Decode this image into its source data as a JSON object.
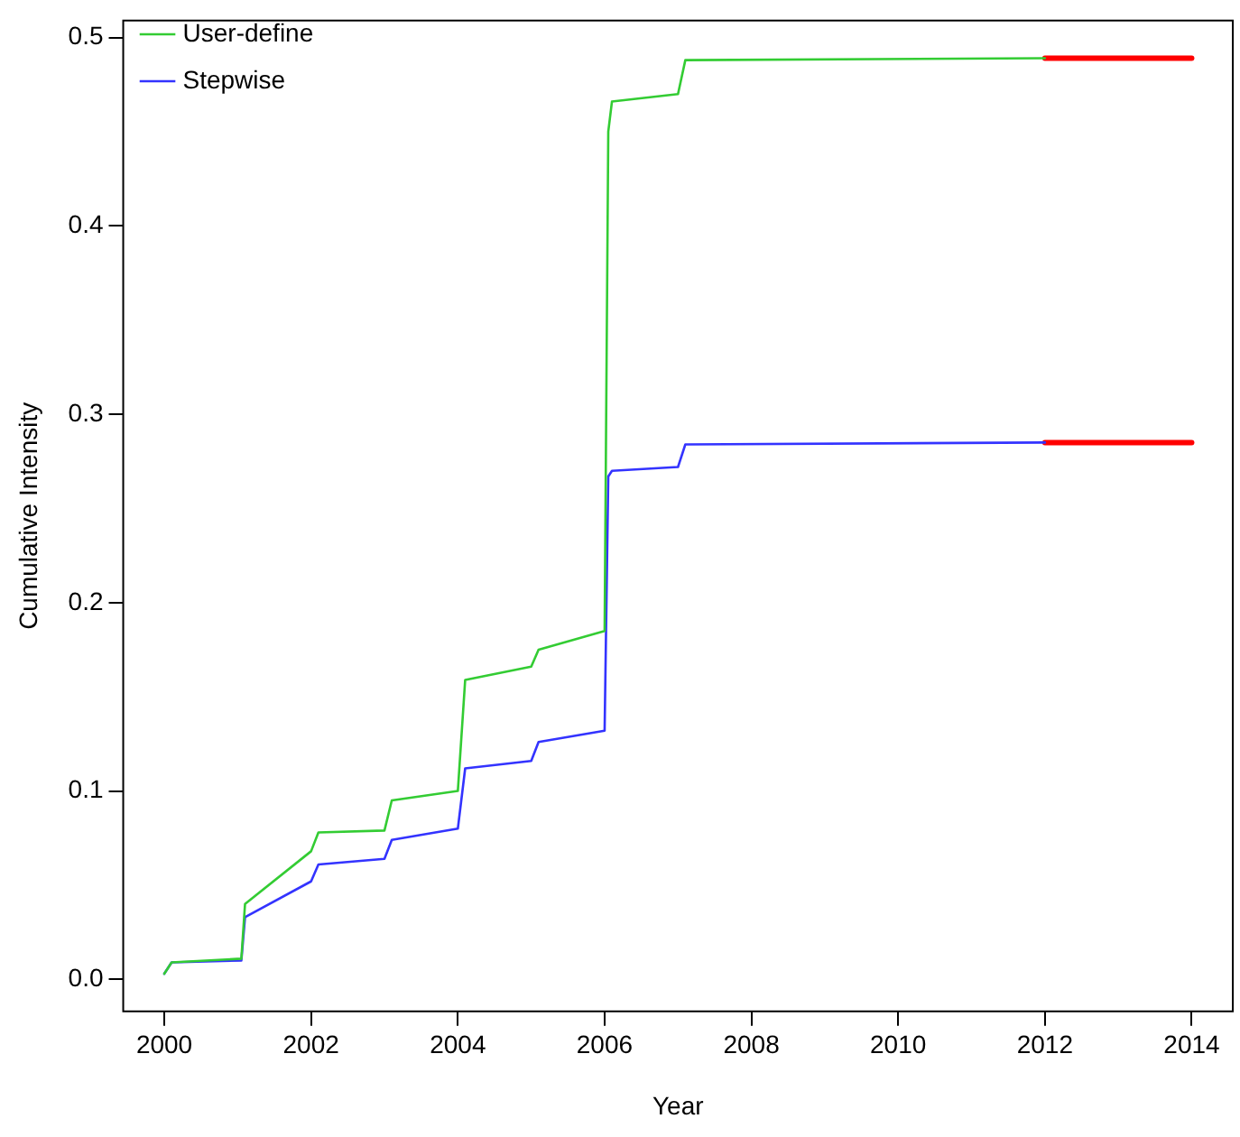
{
  "chart_data": {
    "type": "line",
    "xlabel": "Year",
    "ylabel": "Cumulative Intensity",
    "xlim": [
      1999.44,
      2014.56
    ],
    "xticks": [
      2000,
      2002,
      2004,
      2006,
      2008,
      2010,
      2012,
      2014
    ],
    "ylim": [
      -0.017,
      0.509
    ],
    "yticks": [
      {
        "value": 0,
        "label": "0.0"
      },
      0.1,
      0.2,
      0.3,
      0.4,
      0.5
    ],
    "grid": false,
    "legend": "top left",
    "marker": "none",
    "line_style": "solid",
    "series": [
      {
        "name": "User-define",
        "color": "#33cc33",
        "x": [
          2000,
          2000.1,
          2001.05,
          2001.1,
          2002.0,
          2002.1,
          2003.0,
          2003.1,
          2004.0,
          2004.1,
          2005.0,
          2005.1,
          2006.0,
          2006.05,
          2006.1,
          2007.0,
          2007.1,
          2012
        ],
        "values": [
          0.003,
          0.009,
          0.011,
          0.04,
          0.068,
          0.078,
          0.079,
          0.095,
          0.1,
          0.159,
          0.166,
          0.175,
          0.185,
          0.45,
          0.466,
          0.47,
          0.488,
          0.489
        ]
      },
      {
        "name": "Stepwise",
        "color": "#3333ff",
        "x": [
          2000,
          2000.1,
          2001.05,
          2001.1,
          2002.0,
          2002.1,
          2003.0,
          2003.1,
          2004.0,
          2004.1,
          2005.0,
          2005.1,
          2006.0,
          2006.05,
          2006.1,
          2007.0,
          2007.1,
          2012
        ],
        "values": [
          0.003,
          0.009,
          0.01,
          0.033,
          0.052,
          0.061,
          0.064,
          0.074,
          0.08,
          0.112,
          0.116,
          0.126,
          0.132,
          0.267,
          0.27,
          0.272,
          0.284,
          0.285
        ]
      },
      {
        "color": "#ff0000",
        "x": [
          2012,
          2014
        ],
        "values": [
          0.489,
          0.489
        ]
      },
      {
        "color": "#ff0000",
        "x": [
          2012,
          2014
        ],
        "values": [
          0.285,
          0.285
        ]
      }
    ]
  }
}
